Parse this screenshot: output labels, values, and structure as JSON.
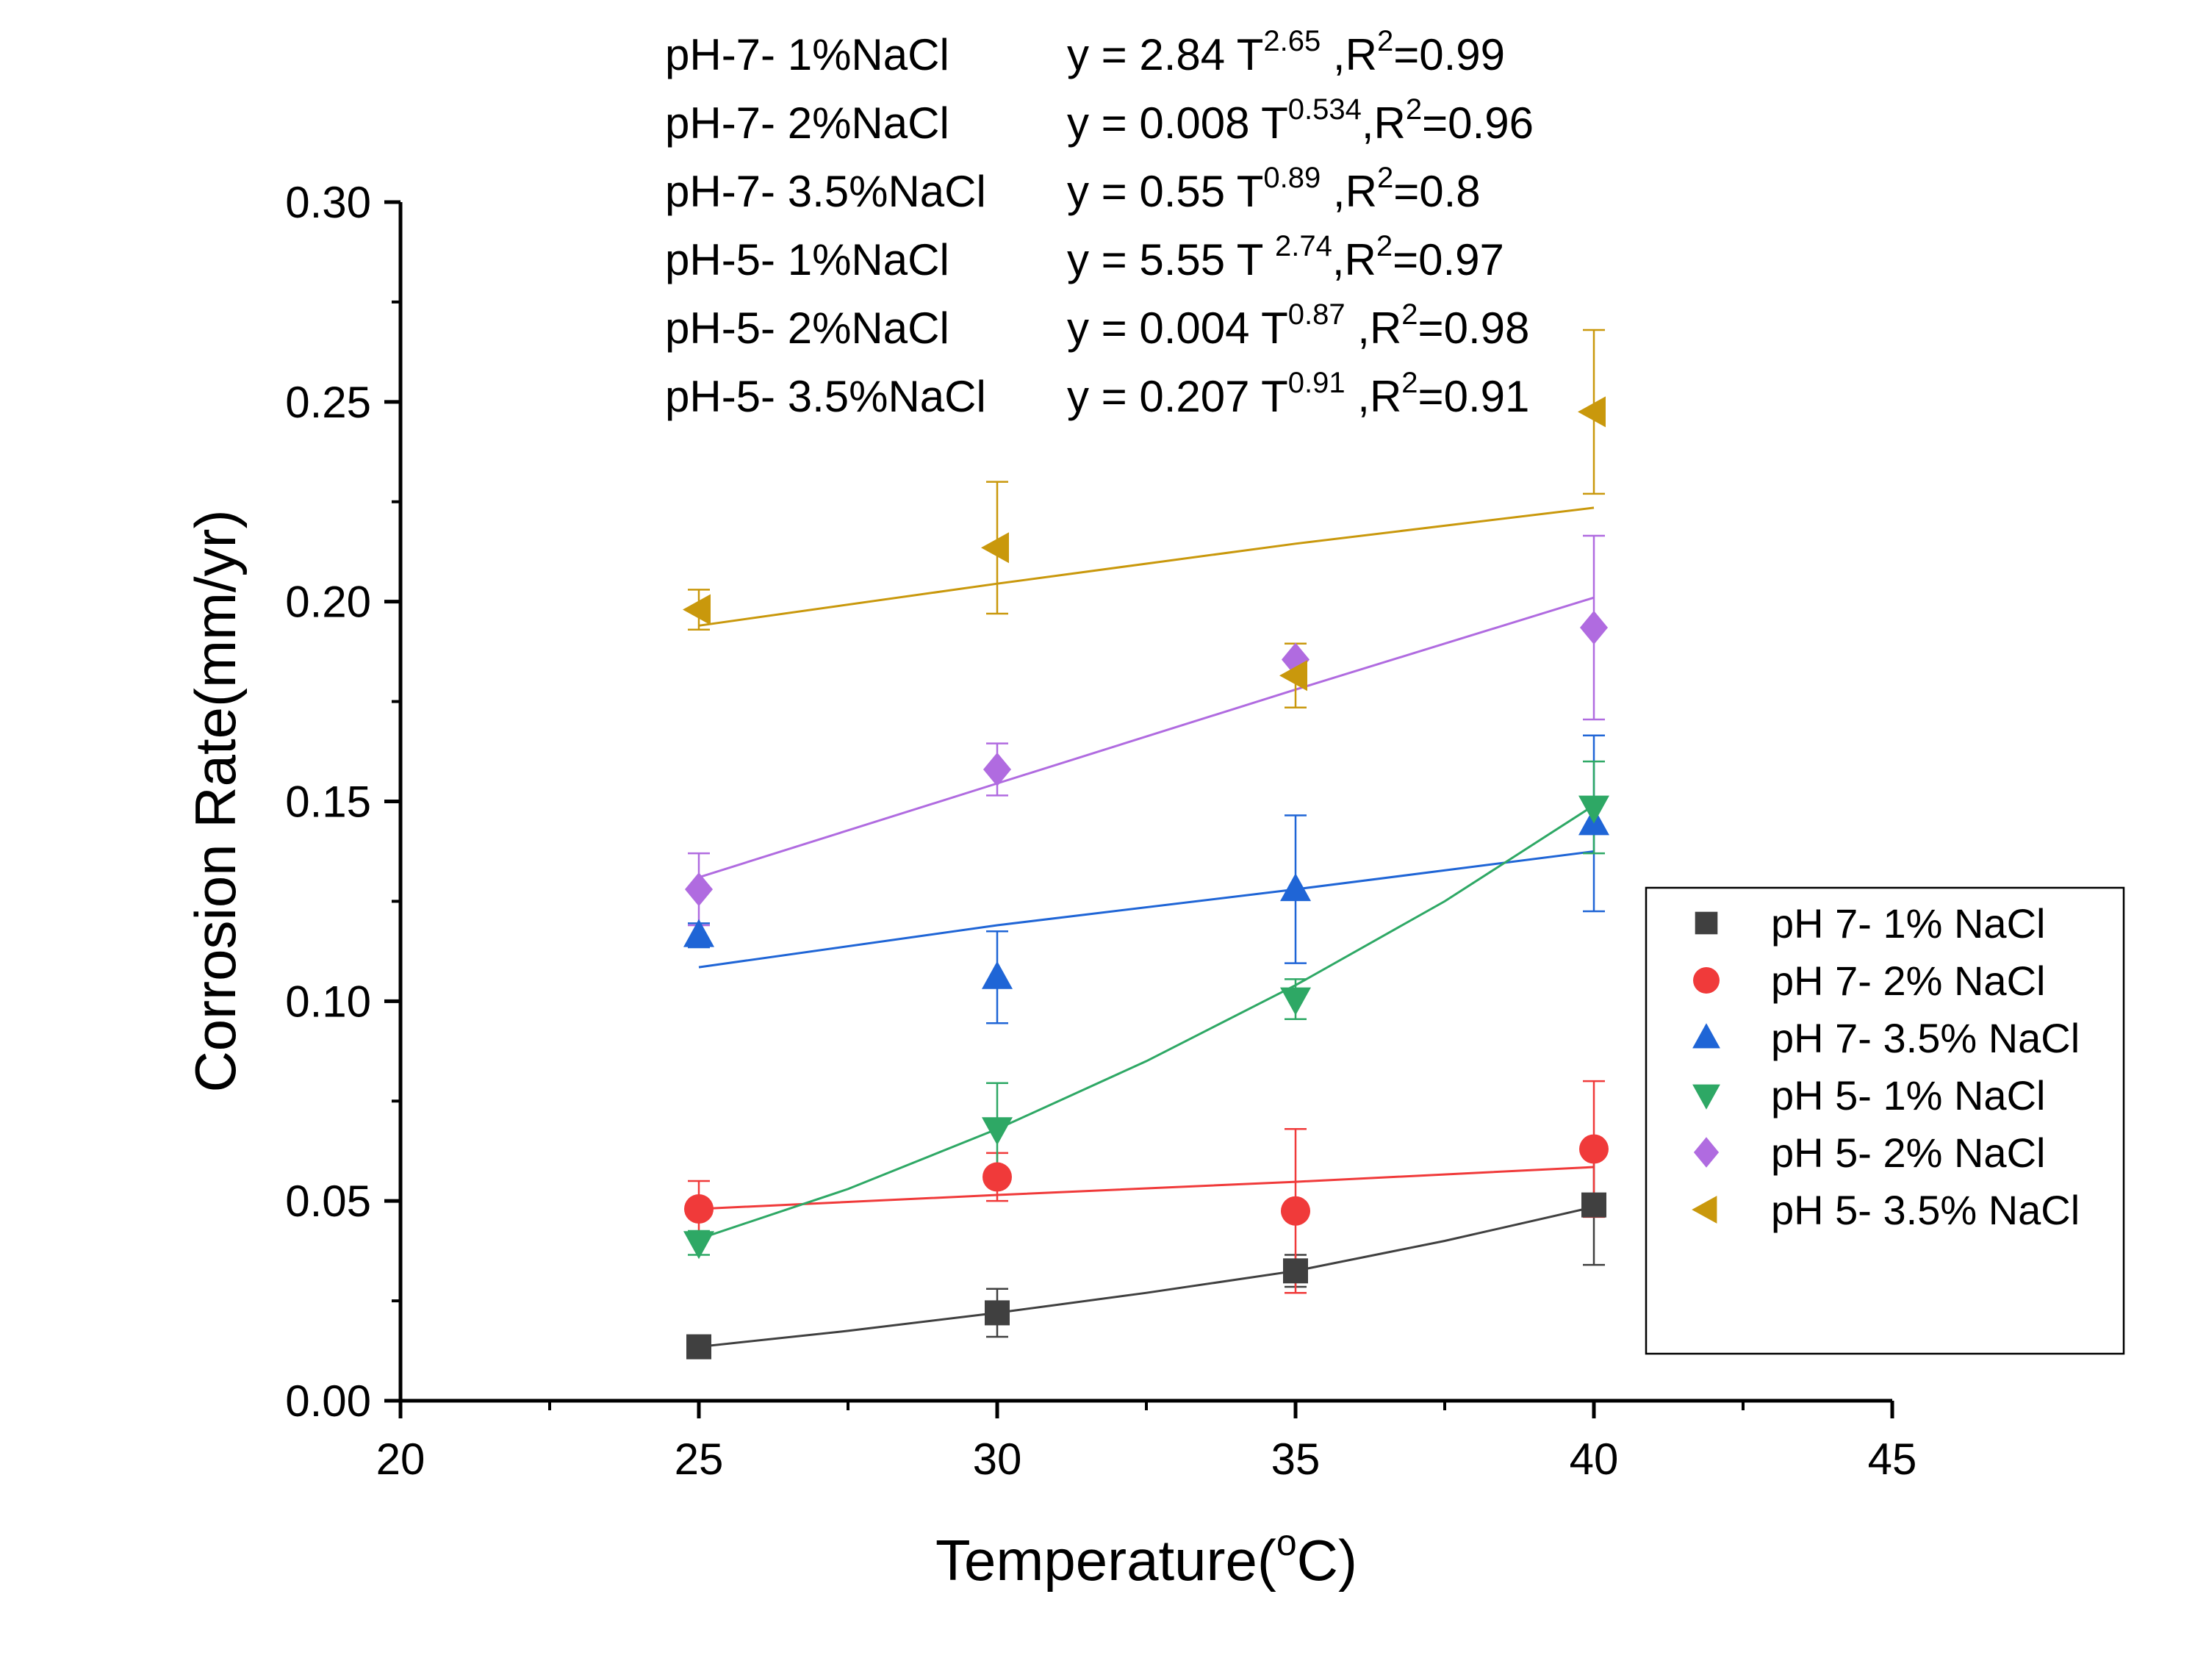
{
  "chart_data": {
    "type": "scatter",
    "xlabel": "Temperature(",
    "xlabel_super": "o",
    "xlabel_tail": "C)",
    "ylabel": "Corrosion Rate(mm/yr)",
    "xlim": [
      20,
      45
    ],
    "ylim": [
      0,
      0.3
    ],
    "x_ticks": [
      20,
      25,
      30,
      35,
      40,
      45
    ],
    "x_tick_labels": [
      "20",
      "25",
      "30",
      "35",
      "40",
      "45"
    ],
    "y_ticks": [
      0,
      0.05,
      0.1,
      0.15,
      0.2,
      0.25,
      0.3
    ],
    "y_tick_labels": [
      "0.00",
      "0.05",
      "0.10",
      "0.15",
      "0.20",
      "0.25",
      "0.30"
    ],
    "x_minor_ticks": [
      22.5,
      27.5,
      32.5,
      37.5,
      42.5
    ],
    "y_minor_ticks": [
      0.025,
      0.075,
      0.125,
      0.175,
      0.225,
      0.275
    ],
    "legend_position": "right",
    "series": [
      {
        "name": "pH 7- 1% NaCl",
        "marker": "square",
        "color": "#404040",
        "x": [
          25,
          30,
          35,
          40
        ],
        "values": [
          0.0135,
          0.022,
          0.0325,
          0.049
        ],
        "err": [
          0.002,
          0.006,
          0.004,
          0.015
        ],
        "fit_x": [
          25,
          27.5,
          30,
          32.5,
          35,
          37.5,
          40
        ],
        "fit_y": [
          0.0135,
          0.0175,
          0.022,
          0.027,
          0.0325,
          0.04,
          0.0485
        ]
      },
      {
        "name": "pH 7- 2% NaCl",
        "marker": "circle",
        "color": "#f03a3a",
        "x": [
          25,
          30,
          35,
          40
        ],
        "values": [
          0.048,
          0.056,
          0.0475,
          0.063
        ],
        "err": [
          0.007,
          0.006,
          0.0205,
          0.017
        ],
        "fit_x": [
          25,
          30,
          35,
          40
        ],
        "fit_y": [
          0.048,
          0.0515,
          0.0548,
          0.0585
        ]
      },
      {
        "name": "pH 7- 3.5% NaCl",
        "marker": "triangle-up",
        "color": "#1f65d6",
        "x": [
          25,
          30,
          35,
          40
        ],
        "values": [
          0.1165,
          0.106,
          0.128,
          0.1445
        ],
        "err": [
          0.003,
          0.0115,
          0.0185,
          0.022
        ],
        "fit_x": [
          25,
          30,
          35,
          40
        ],
        "fit_y": [
          0.1085,
          0.119,
          0.128,
          0.1375
        ]
      },
      {
        "name": "pH 5- 1% NaCl",
        "marker": "triangle-down",
        "color": "#2ea865",
        "x": [
          25,
          30,
          35,
          40
        ],
        "values": [
          0.0395,
          0.068,
          0.1005,
          0.1485
        ],
        "err": [
          0.003,
          0.0115,
          0.005,
          0.0115
        ],
        "fit_x": [
          25,
          27.5,
          30,
          32.5,
          35,
          37.5,
          40
        ],
        "fit_y": [
          0.0405,
          0.053,
          0.068,
          0.085,
          0.104,
          0.125,
          0.149
        ]
      },
      {
        "name": "pH 5- 2% NaCl",
        "marker": "diamond",
        "color": "#b06be0",
        "x": [
          25,
          30,
          35,
          40
        ],
        "values": [
          0.128,
          0.158,
          0.1855,
          0.1935
        ],
        "err": [
          0.009,
          0.0065,
          0.004,
          0.023
        ],
        "fit_x": [
          25,
          30,
          35,
          40
        ],
        "fit_y": [
          0.131,
          0.1545,
          0.178,
          0.201
        ]
      },
      {
        "name": "pH 5- 3.5% NaCl",
        "marker": "triangle-left",
        "color": "#c9980c",
        "x": [
          25,
          30,
          35,
          40
        ],
        "values": [
          0.198,
          0.2135,
          0.1815,
          0.2475
        ],
        "err": [
          0.005,
          0.0165,
          0.008,
          0.0205
        ],
        "fit_x": [
          25,
          30,
          35,
          40
        ],
        "fit_y": [
          0.194,
          0.2045,
          0.2145,
          0.2235
        ]
      }
    ],
    "annotations": [
      {
        "label": "pH-7- 1%NaCl",
        "pre": "y = 2.84   T",
        "exp": "2.65",
        "post": " ,R",
        "r2": "=0.99"
      },
      {
        "label": "pH-7- 2%NaCl",
        "pre": "y = 0.008 T",
        "exp": "0.534",
        "post": ",R",
        "r2": "=0.96"
      },
      {
        "label": "pH-7- 3.5%NaCl",
        "pre": "y = 0.55   T",
        "exp": "0.89",
        "post": " ,R",
        "r2": "=0.8"
      },
      {
        "label": "pH-5- 1%NaCl",
        "pre": "y = 5.55   T ",
        "exp": "2.74",
        "post": ",R",
        "r2": "=0.97"
      },
      {
        "label": "pH-5- 2%NaCl",
        "pre": "y = 0.004 T",
        "exp": "0.87",
        "post": " ,R",
        "r2": "=0.98"
      },
      {
        "label": "pH-5- 3.5%NaCl",
        "pre": "y = 0.207 T",
        "exp": "0.91",
        "post": " ,R",
        "r2": "=0.91"
      }
    ],
    "r2_superscript": "2"
  }
}
